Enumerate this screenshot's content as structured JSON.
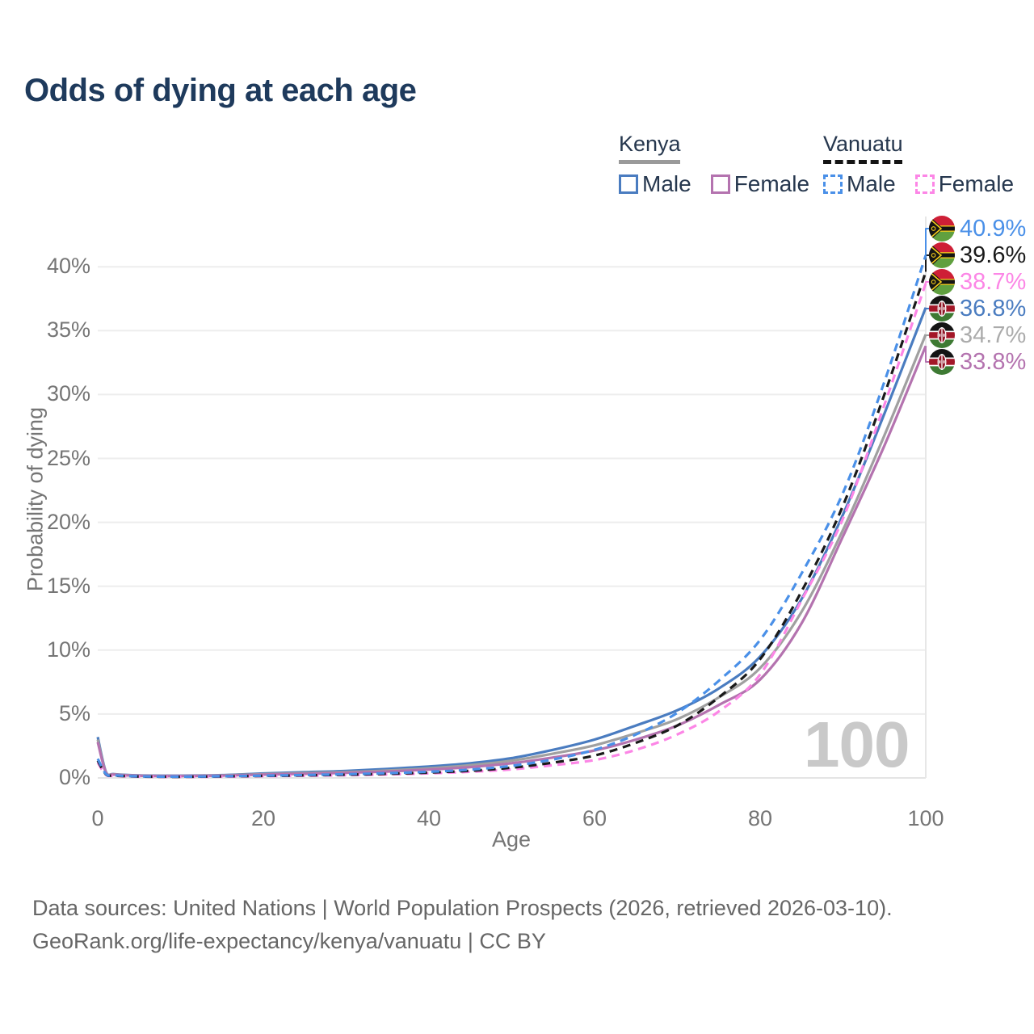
{
  "title": "Odds of dying at each age",
  "legend": {
    "groups": [
      {
        "label": "Kenya",
        "style": "solid",
        "underline_color": "#9a9a9a",
        "items": [
          {
            "label": "Male",
            "color": "#4a7cc0"
          },
          {
            "label": "Female",
            "color": "#b473af"
          }
        ]
      },
      {
        "label": "Vanuatu",
        "style": "dashed",
        "underline_color": "#141414",
        "items": [
          {
            "label": "Male",
            "color": "#4a90e8"
          },
          {
            "label": "Female",
            "color": "#fc86e6"
          }
        ]
      }
    ]
  },
  "y_axis": {
    "title": "Probability of dying",
    "ticks": [
      "0%",
      "5%",
      "10%",
      "15%",
      "20%",
      "25%",
      "30%",
      "35%",
      "40%"
    ],
    "tick_values": [
      0,
      5,
      10,
      15,
      20,
      25,
      30,
      35,
      40
    ]
  },
  "x_axis": {
    "title": "Age",
    "ticks": [
      "0",
      "20",
      "40",
      "60",
      "80",
      "100"
    ],
    "tick_values": [
      0,
      20,
      40,
      60,
      80,
      100
    ]
  },
  "hover_age_label": "100",
  "end_labels": [
    {
      "series": "Vanuatu Male",
      "value": "40.9%",
      "color": "#4a90e8",
      "flag": "vanuatu"
    },
    {
      "series": "Vanuatu",
      "value": "39.6%",
      "color": "#1a1a1a",
      "flag": "vanuatu"
    },
    {
      "series": "Vanuatu Female",
      "value": "38.7%",
      "color": "#fc86e6",
      "flag": "vanuatu"
    },
    {
      "series": "Kenya Male",
      "value": "36.8%",
      "color": "#4a7cc0",
      "flag": "kenya"
    },
    {
      "series": "Kenya",
      "value": "34.7%",
      "color": "#ababab",
      "flag": "kenya"
    },
    {
      "series": "Kenya Female",
      "value": "33.8%",
      "color": "#b473af",
      "flag": "kenya"
    }
  ],
  "footer": {
    "line1": "Data sources: United Nations | World Population Prospects (2026, retrieved 2026-03-10).",
    "line2": "GeoRank.org/life-expectancy/kenya/vanuatu | CC BY"
  },
  "chart_data": {
    "type": "line",
    "title": "Odds of dying at each age",
    "xlabel": "Age",
    "ylabel": "Probability of dying",
    "xlim": [
      0,
      100
    ],
    "ylim": [
      0,
      43
    ],
    "grid": "horizontal",
    "legend_position": "top-right",
    "hover_x": 100,
    "x": [
      0,
      1,
      2,
      5,
      10,
      15,
      20,
      25,
      30,
      35,
      40,
      45,
      50,
      55,
      60,
      65,
      70,
      75,
      80,
      85,
      90,
      95,
      100
    ],
    "series": [
      {
        "name": "Kenya Male",
        "color": "#4a7cc0",
        "dash": "solid",
        "end_label": "36.8%",
        "values": [
          3.2,
          0.45,
          0.3,
          0.2,
          0.18,
          0.22,
          0.35,
          0.45,
          0.55,
          0.7,
          0.9,
          1.15,
          1.55,
          2.2,
          3.0,
          4.1,
          5.3,
          7.0,
          9.5,
          14.0,
          20.6,
          28.5,
          36.8
        ]
      },
      {
        "name": "Kenya",
        "color": "#a0a0a0",
        "dash": "solid",
        "end_label": "34.7%",
        "values": [
          3.0,
          0.42,
          0.28,
          0.18,
          0.16,
          0.2,
          0.3,
          0.38,
          0.46,
          0.58,
          0.75,
          1.0,
          1.35,
          1.9,
          2.55,
          3.5,
          4.6,
          6.3,
          8.6,
          13.0,
          19.4,
          26.8,
          34.7
        ]
      },
      {
        "name": "Kenya Female",
        "color": "#b473af",
        "dash": "solid",
        "end_label": "33.8%",
        "values": [
          2.8,
          0.4,
          0.26,
          0.17,
          0.15,
          0.18,
          0.26,
          0.32,
          0.4,
          0.5,
          0.65,
          0.85,
          1.15,
          1.6,
          2.15,
          3.0,
          4.1,
          5.7,
          7.7,
          12.1,
          18.9,
          26.0,
          33.8
        ]
      },
      {
        "name": "Vanuatu Female",
        "color": "#fc86e6",
        "dash": "dashed",
        "end_label": "38.7%",
        "values": [
          1.2,
          0.24,
          0.16,
          0.1,
          0.08,
          0.1,
          0.14,
          0.17,
          0.21,
          0.27,
          0.36,
          0.48,
          0.67,
          1.0,
          1.4,
          2.2,
          3.4,
          5.2,
          8.1,
          13.9,
          20.3,
          29.2,
          38.7
        ]
      },
      {
        "name": "Vanuatu",
        "color": "#1a1a1a",
        "dash": "dashed",
        "end_label": "39.6%",
        "values": [
          1.35,
          0.27,
          0.18,
          0.11,
          0.09,
          0.12,
          0.16,
          0.2,
          0.25,
          0.32,
          0.42,
          0.56,
          0.8,
          1.2,
          1.75,
          2.75,
          4.1,
          6.3,
          9.3,
          14.6,
          21.3,
          30.0,
          39.6
        ]
      },
      {
        "name": "Vanuatu Male",
        "color": "#4a90e8",
        "dash": "dashed",
        "end_label": "40.9%",
        "values": [
          1.5,
          0.3,
          0.2,
          0.12,
          0.1,
          0.13,
          0.18,
          0.23,
          0.29,
          0.37,
          0.48,
          0.65,
          0.95,
          1.45,
          2.2,
          3.4,
          5.1,
          7.6,
          10.8,
          16.0,
          22.3,
          31.0,
          40.9
        ]
      }
    ]
  }
}
